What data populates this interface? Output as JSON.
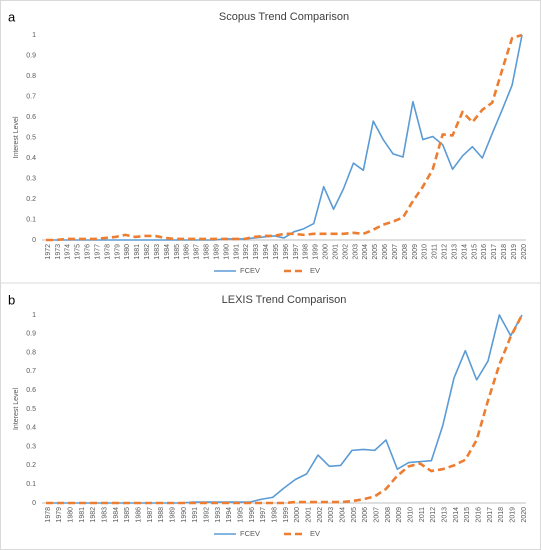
{
  "chart_data": [
    {
      "type": "line",
      "panel": "a",
      "title": "Scopus Trend Comparison",
      "ylabel": "Interest Level",
      "categories": [
        "1972",
        "1973",
        "1974",
        "1975",
        "1976",
        "1977",
        "1978",
        "1979",
        "1980",
        "1981",
        "1982",
        "1983",
        "1984",
        "1985",
        "1986",
        "1987",
        "1988",
        "1989",
        "1990",
        "1991",
        "1992",
        "1993",
        "1994",
        "1995",
        "1996",
        "1997",
        "1998",
        "1999",
        "2000",
        "2001",
        "2002",
        "2003",
        "2004",
        "2005",
        "2006",
        "2007",
        "2008",
        "2009",
        "2010",
        "2011",
        "2012",
        "2013",
        "2014",
        "2015",
        "2016",
        "2017",
        "2018",
        "2019",
        "2020"
      ],
      "series": [
        {
          "name": "FCEV",
          "color": "#5b9bd5",
          "dashed": false,
          "values": [
            0,
            0,
            0,
            0,
            0,
            0,
            0,
            0,
            0,
            0,
            0,
            0,
            0,
            0,
            0,
            0,
            0,
            0,
            0.005,
            0.005,
            0.005,
            0.01,
            0.015,
            0.02,
            0.01,
            0.04,
            0.055,
            0.08,
            0.26,
            0.15,
            0.25,
            0.375,
            0.34,
            0.58,
            0.49,
            0.42,
            0.405,
            0.675,
            0.49,
            0.505,
            0.465,
            0.345,
            0.41,
            0.455,
            0.4,
            0.52,
            0.635,
            0.755,
            1
          ]
        },
        {
          "name": "EV",
          "color": "#ed7d31",
          "dashed": true,
          "values": [
            0,
            0,
            0.005,
            0.005,
            0.005,
            0.005,
            0.01,
            0.015,
            0.025,
            0.015,
            0.02,
            0.02,
            0.01,
            0.005,
            0.005,
            0.005,
            0.005,
            0.005,
            0.005,
            0.005,
            0.005,
            0.015,
            0.02,
            0.02,
            0.03,
            0.03,
            0.025,
            0.03,
            0.03,
            0.03,
            0.03,
            0.035,
            0.03,
            0.05,
            0.075,
            0.09,
            0.11,
            0.19,
            0.26,
            0.345,
            0.515,
            0.51,
            0.625,
            0.575,
            0.635,
            0.67,
            0.83,
            0.985,
            1
          ]
        }
      ],
      "ylim": [
        0,
        1
      ],
      "yticks": [
        0,
        0.1,
        0.2,
        0.3,
        0.4,
        0.5,
        0.6,
        0.7,
        0.8,
        0.9,
        1
      ],
      "grid": false
    },
    {
      "type": "line",
      "panel": "b",
      "title": "LEXIS Trend Comparison",
      "ylabel": "Interest Level",
      "categories": [
        "1978",
        "1979",
        "1980",
        "1981",
        "1982",
        "1983",
        "1984",
        "1985",
        "1986",
        "1987",
        "1988",
        "1989",
        "1990",
        "1991",
        "1992",
        "1993",
        "1994",
        "1995",
        "1996",
        "1997",
        "1998",
        "1999",
        "2000",
        "2001",
        "2002",
        "2003",
        "2004",
        "2005",
        "2006",
        "2007",
        "2008",
        "2009",
        "2010",
        "2011",
        "2012",
        "2013",
        "2014",
        "2015",
        "2016",
        "2017",
        "2018",
        "2019",
        "2020"
      ],
      "series": [
        {
          "name": "FCEV",
          "color": "#5b9bd5",
          "dashed": false,
          "values": [
            0,
            0,
            0,
            0,
            0,
            0,
            0,
            0,
            0,
            0,
            0,
            0,
            0,
            0.005,
            0.005,
            0.005,
            0.005,
            0.005,
            0.005,
            0.02,
            0.03,
            0.08,
            0.125,
            0.155,
            0.255,
            0.195,
            0.2,
            0.28,
            0.285,
            0.28,
            0.335,
            0.18,
            0.215,
            0.22,
            0.225,
            0.41,
            0.665,
            0.81,
            0.655,
            0.755,
            1,
            0.89,
            1
          ]
        },
        {
          "name": "EV",
          "color": "#ed7d31",
          "dashed": true,
          "values": [
            0,
            0,
            0,
            0,
            0,
            0,
            0,
            0,
            0,
            0,
            0,
            0,
            0,
            0,
            0,
            0,
            0,
            0,
            0,
            0,
            0,
            0,
            0.005,
            0.005,
            0.005,
            0.005,
            0.005,
            0.01,
            0.02,
            0.035,
            0.075,
            0.145,
            0.195,
            0.21,
            0.17,
            0.18,
            0.2,
            0.23,
            0.335,
            0.545,
            0.735,
            0.885,
            1
          ]
        }
      ],
      "ylim": [
        0,
        1
      ],
      "yticks": [
        0,
        0.1,
        0.2,
        0.3,
        0.4,
        0.5,
        0.6,
        0.7,
        0.8,
        0.9,
        1
      ],
      "grid": false
    }
  ]
}
